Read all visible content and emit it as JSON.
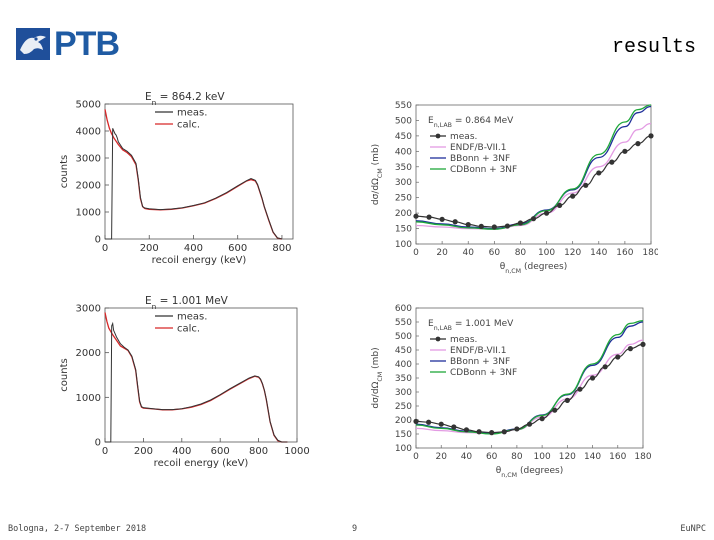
{
  "logo": {
    "text": "PTB"
  },
  "slide": {
    "title": "results"
  },
  "footer": {
    "left": "Bologna, 2-7 September 2018",
    "page": "9",
    "right": "EuNPC"
  },
  "colors": {
    "meas": "#333333",
    "calc": "#d62728",
    "endf": "#e39be3",
    "bonn": "#1f2f9a",
    "cdbonn": "#1fa83a",
    "points": "#333333",
    "brand": "#1f5ba3"
  },
  "chart_data": [
    {
      "type": "line",
      "title": "E_n = 864.2 keV",
      "title_main": "E",
      "title_sub": "n",
      "title_rest": " = 864.2 keV",
      "xlabel": "recoil energy (keV)",
      "ylabel": "counts",
      "xlim": [
        0,
        850
      ],
      "ylim": [
        0,
        5000
      ],
      "xticks": [
        "0",
        "200",
        "400",
        "600",
        "800"
      ],
      "yticks": [
        "0",
        "1000",
        "2000",
        "3000",
        "4000",
        "5000"
      ],
      "legend": [
        "meas.",
        "calc."
      ],
      "series": [
        {
          "name": "calc.",
          "x": [
            0,
            10,
            20,
            30,
            40,
            60,
            80,
            100,
            120,
            140,
            150,
            160,
            170,
            180,
            200,
            250,
            300,
            350,
            400,
            450,
            500,
            550,
            600,
            640,
            660,
            680,
            690,
            700,
            710,
            720,
            740,
            760,
            780,
            800
          ],
          "y": [
            4800,
            4400,
            4100,
            3900,
            3750,
            3500,
            3300,
            3200,
            3050,
            2750,
            2200,
            1500,
            1200,
            1130,
            1100,
            1080,
            1100,
            1150,
            1230,
            1330,
            1500,
            1700,
            1950,
            2150,
            2200,
            2150,
            2000,
            1750,
            1500,
            1200,
            700,
            250,
            30,
            0
          ]
        },
        {
          "name": "meas.",
          "x": [
            0,
            5,
            10,
            20,
            30,
            35,
            40,
            45,
            50,
            55,
            60,
            80,
            100,
            120,
            140,
            150,
            160,
            170,
            180,
            200,
            250,
            300,
            350,
            400,
            450,
            500,
            550,
            600,
            640,
            660,
            680,
            690,
            700,
            710,
            720,
            740,
            760,
            780,
            800
          ],
          "y": [
            0,
            0,
            0,
            0,
            0,
            4100,
            4000,
            3900,
            3850,
            3750,
            3600,
            3350,
            3250,
            3100,
            2800,
            2250,
            1550,
            1200,
            1150,
            1120,
            1090,
            1110,
            1160,
            1240,
            1340,
            1510,
            1720,
            1970,
            2160,
            2240,
            2170,
            2020,
            1770,
            1520,
            1210,
            720,
            260,
            40,
            0
          ]
        }
      ]
    },
    {
      "type": "line",
      "title": "E_n = 1.001 MeV",
      "title_main": "E",
      "title_sub": "n",
      "title_rest": " = 1.001 MeV",
      "xlabel": "recoil energy (keV)",
      "ylabel": "counts",
      "xlim": [
        0,
        1000
      ],
      "ylim": [
        0,
        3000
      ],
      "xticks": [
        "0",
        "200",
        "400",
        "600",
        "800",
        "1000"
      ],
      "yticks": [
        "0",
        "1000",
        "2000",
        "3000"
      ],
      "legend": [
        "meas.",
        "calc."
      ],
      "series": [
        {
          "name": "calc.",
          "x": [
            0,
            10,
            20,
            40,
            60,
            80,
            100,
            120,
            140,
            160,
            170,
            180,
            190,
            200,
            250,
            300,
            350,
            400,
            450,
            500,
            550,
            600,
            650,
            700,
            750,
            780,
            800,
            810,
            820,
            830,
            840,
            860,
            880,
            900,
            920,
            950
          ],
          "y": [
            2900,
            2700,
            2550,
            2400,
            2280,
            2150,
            2100,
            2050,
            1900,
            1600,
            1250,
            900,
            780,
            760,
            740,
            720,
            720,
            740,
            780,
            840,
            930,
            1050,
            1180,
            1300,
            1420,
            1470,
            1450,
            1400,
            1300,
            1150,
            950,
            450,
            150,
            30,
            0,
            0
          ]
        },
        {
          "name": "meas.",
          "x": [
            0,
            20,
            30,
            35,
            40,
            45,
            50,
            60,
            80,
            100,
            120,
            140,
            160,
            170,
            180,
            190,
            200,
            250,
            300,
            350,
            400,
            450,
            500,
            550,
            600,
            650,
            700,
            750,
            780,
            800,
            810,
            820,
            830,
            840,
            860,
            880,
            900,
            920,
            950
          ],
          "y": [
            0,
            0,
            0,
            2600,
            2650,
            2500,
            2450,
            2350,
            2200,
            2120,
            2060,
            1920,
            1620,
            1270,
            920,
            790,
            770,
            745,
            725,
            725,
            745,
            790,
            850,
            940,
            1060,
            1190,
            1310,
            1430,
            1480,
            1460,
            1410,
            1310,
            1160,
            960,
            460,
            160,
            40,
            0,
            0
          ]
        }
      ]
    },
    {
      "type": "line",
      "title": "E_n,LAB = 0.864 MeV",
      "title_main": "E",
      "title_sub": "n,LAB",
      "title_rest": " = 0.864 MeV",
      "xlabel": "θ_n,CM (degrees)",
      "xlabel_main": "θ",
      "xlabel_sub": "n,CM",
      "xlabel_rest": " (degrees)",
      "ylabel": "dσ/dΩ_CM (mb)",
      "xlim": [
        0,
        180
      ],
      "ylim": [
        100,
        550
      ],
      "xticks": [
        "0",
        "20",
        "40",
        "60",
        "80",
        "100",
        "120",
        "140",
        "160",
        "180"
      ],
      "yticks": [
        "100",
        "150",
        "200",
        "250",
        "300",
        "350",
        "400",
        "450",
        "500",
        "550"
      ],
      "legend": [
        "meas.",
        "ENDF/B-VII.1",
        "BBonn + 3NF",
        "CDBonn + 3NF"
      ],
      "series": [
        {
          "name": "ENDF/B-VII.1",
          "x": [
            0,
            20,
            40,
            60,
            80,
            100,
            120,
            140,
            160,
            170,
            180
          ],
          "y": [
            160,
            155,
            150,
            148,
            160,
            200,
            265,
            350,
            430,
            470,
            490
          ]
        },
        {
          "name": "BBonn + 3NF",
          "x": [
            0,
            20,
            40,
            60,
            80,
            100,
            120,
            140,
            160,
            170,
            180
          ],
          "y": [
            175,
            165,
            155,
            150,
            165,
            210,
            275,
            380,
            480,
            525,
            545
          ]
        },
        {
          "name": "CDBonn + 3NF",
          "x": [
            0,
            20,
            40,
            60,
            80,
            100,
            120,
            140,
            160,
            170,
            180
          ],
          "y": [
            172,
            162,
            152,
            148,
            162,
            208,
            278,
            390,
            495,
            535,
            550
          ]
        },
        {
          "name": "meas.",
          "x": [
            0,
            10,
            20,
            30,
            40,
            50,
            60,
            70,
            80,
            90,
            100,
            110,
            120,
            130,
            140,
            150,
            160,
            170,
            180
          ],
          "y": [
            190,
            187,
            180,
            172,
            163,
            157,
            155,
            158,
            168,
            182,
            200,
            225,
            255,
            290,
            330,
            365,
            400,
            425,
            450
          ]
        }
      ]
    },
    {
      "type": "line",
      "title": "E_n,LAB = 1.001 MeV",
      "title_main": "E",
      "title_sub": "n,LAB",
      "title_rest": " = 1.001 MeV",
      "xlabel": "θ_n,CM (degrees)",
      "xlabel_main": "θ",
      "xlabel_sub": "n,CM",
      "xlabel_rest": " (degrees)",
      "ylabel": "dσ/dΩ_CM (mb)",
      "xlim": [
        0,
        180
      ],
      "ylim": [
        100,
        600
      ],
      "xticks": [
        "0",
        "20",
        "40",
        "60",
        "80",
        "100",
        "120",
        "140",
        "160",
        "180"
      ],
      "yticks": [
        "100",
        "150",
        "200",
        "250",
        "300",
        "350",
        "400",
        "450",
        "500",
        "550",
        "600"
      ],
      "legend": [
        "meas.",
        "ENDF/B-VII.1",
        "BBonn + 3NF",
        "CDBonn + 3NF"
      ],
      "series": [
        {
          "name": "ENDF/B-VII.1",
          "x": [
            0,
            20,
            40,
            60,
            80,
            100,
            120,
            140,
            160,
            170,
            180
          ],
          "y": [
            170,
            162,
            155,
            152,
            165,
            210,
            275,
            360,
            435,
            470,
            485
          ]
        },
        {
          "name": "BBonn + 3NF",
          "x": [
            0,
            20,
            40,
            60,
            80,
            100,
            120,
            140,
            160,
            170,
            180
          ],
          "y": [
            185,
            172,
            160,
            152,
            168,
            218,
            290,
            395,
            495,
            535,
            550
          ]
        },
        {
          "name": "CDBonn + 3NF",
          "x": [
            0,
            20,
            40,
            60,
            80,
            100,
            120,
            140,
            160,
            170,
            180
          ],
          "y": [
            182,
            170,
            158,
            150,
            166,
            216,
            292,
            400,
            505,
            545,
            555
          ]
        },
        {
          "name": "meas.",
          "x": [
            0,
            10,
            20,
            30,
            40,
            50,
            60,
            70,
            80,
            90,
            100,
            110,
            120,
            130,
            140,
            150,
            160,
            170,
            180
          ],
          "y": [
            195,
            192,
            185,
            175,
            165,
            158,
            155,
            158,
            168,
            185,
            205,
            235,
            270,
            310,
            350,
            390,
            425,
            455,
            470
          ]
        }
      ]
    }
  ]
}
